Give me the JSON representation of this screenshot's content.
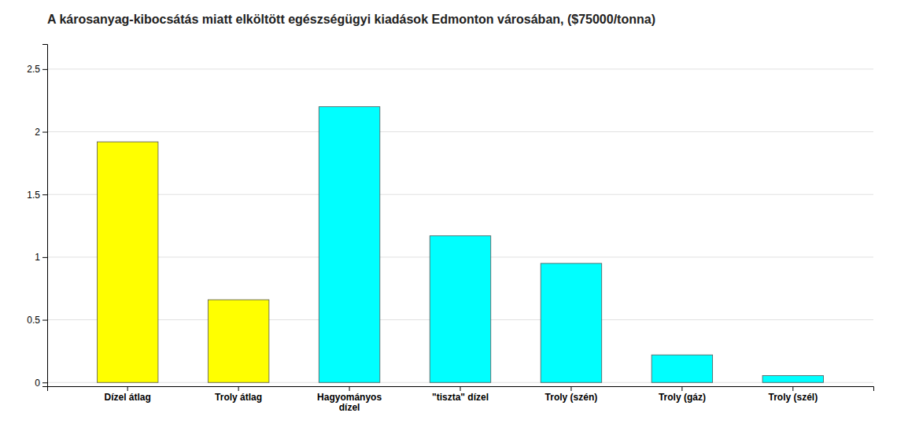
{
  "chart_data": {
    "type": "bar",
    "title": "A károsanyag-kibocsátás miatt elköltött egészségügyi kiadások Edmonton városában, ($75000/tonna)",
    "categories": [
      "Dízel átlag",
      "Troly átlag",
      "Hagyományos\ndízel",
      "\"tiszta\" dízel",
      "Troly (szén)",
      "Troly (gáz)",
      "Troly (szél)"
    ],
    "values": [
      1.92,
      0.66,
      2.2,
      1.17,
      0.95,
      0.22,
      0.055
    ],
    "colors": [
      "#ffff00",
      "#ffff00",
      "#00ffff",
      "#00ffff",
      "#00ffff",
      "#00ffff",
      "#00ffff"
    ],
    "ylim": [
      -0.03,
      2.7
    ],
    "yticks": [
      0,
      0.5,
      1,
      1.5,
      2,
      2.5
    ],
    "grid": true
  }
}
